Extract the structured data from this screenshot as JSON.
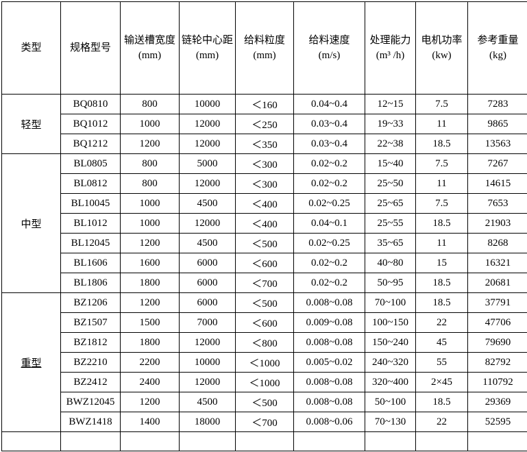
{
  "colors": {
    "background": "#ffffff",
    "border": "#000000",
    "text": "#000000"
  },
  "table": {
    "column_keys": [
      "model",
      "trough-width",
      "sprocket-center-distance",
      "feed-size",
      "feed-speed",
      "capacity",
      "motor-power",
      "reference-weight"
    ],
    "headers": [
      {
        "key": "type",
        "label": "类型",
        "unit": ""
      },
      {
        "key": "model",
        "label": "规格型号",
        "unit": ""
      },
      {
        "key": "trough-width",
        "label": "输送槽宽度",
        "unit": "(mm)"
      },
      {
        "key": "sprocket-center-distance",
        "label": "链轮中心距",
        "unit": "(mm)"
      },
      {
        "key": "feed-size",
        "label": "给料粒度",
        "unit": "(mm)"
      },
      {
        "key": "feed-speed",
        "label": "给料速度",
        "unit": "(m/s)"
      },
      {
        "key": "capacity",
        "label": "处理能力",
        "unit": "(m³ /h)"
      },
      {
        "key": "motor-power",
        "label": "电机功率",
        "unit": "(kw)"
      },
      {
        "key": "reference-weight",
        "label": "参考重量",
        "unit": "(kg)"
      }
    ],
    "groups": [
      {
        "type": "轻型",
        "underline": false,
        "rows": [
          [
            "BQ0810",
            "800",
            "10000",
            "＜160",
            "0.04~0.4",
            "12~15",
            "7.5",
            "7283"
          ],
          [
            "BQ1012",
            "1000",
            "12000",
            "＜250",
            "0.03~0.4",
            "19~33",
            "11",
            "9865"
          ],
          [
            "BQ1212",
            "1200",
            "12000",
            "＜350",
            "0.03~0.4",
            "22~38",
            "18.5",
            "13563"
          ]
        ]
      },
      {
        "type": "中型",
        "underline": false,
        "rows": [
          [
            "BL0805",
            "800",
            "5000",
            "＜300",
            "0.02~0.2",
            "15~40",
            "7.5",
            "7267"
          ],
          [
            "BL0812",
            "800",
            "12000",
            "＜300",
            "0.02~0.2",
            "25~50",
            "11",
            "14615"
          ],
          [
            "BL10045",
            "1000",
            "4500",
            "＜400",
            "0.02~0.25",
            "25~65",
            "7.5",
            "7653"
          ],
          [
            "BL1012",
            "1000",
            "12000",
            "＜400",
            "0.04~0.1",
            "25~55",
            "18.5",
            "21903"
          ],
          [
            "BL12045",
            "1200",
            "4500",
            "＜500",
            "0.02~0.25",
            "35~65",
            "11",
            "8268"
          ],
          [
            "BL1606",
            "1600",
            "6000",
            "＜600",
            "0.02~0.2",
            "40~80",
            "15",
            "16321"
          ],
          [
            "BL1806",
            "1800",
            "6000",
            "＜700",
            "0.02~0.2",
            "50~95",
            "18.5",
            "20681"
          ]
        ]
      },
      {
        "type": "重型",
        "underline": true,
        "rows": [
          [
            "BZ1206",
            "1200",
            "6000",
            "＜500",
            "0.008~0.08",
            "70~100",
            "18.5",
            "37791"
          ],
          [
            "BZ1507",
            "1500",
            "7000",
            "＜600",
            "0.009~0.08",
            "100~150",
            "22",
            "47706"
          ],
          [
            "BZ1812",
            "1800",
            "12000",
            "＜800",
            "0.008~0.08",
            "150~240",
            "45",
            "79690"
          ],
          [
            "BZ2210",
            "2200",
            "10000",
            "＜1000",
            "0.005~0.02",
            "240~320",
            "55",
            "82792"
          ],
          [
            "BZ2412",
            "2400",
            "12000",
            "＜1000",
            "0.008~0.08",
            "320~400",
            "2×45",
            "110792"
          ],
          [
            "BWZ12045",
            "1200",
            "4500",
            "＜500",
            "0.008~0.08",
            "50~100",
            "18.5",
            "29369"
          ],
          [
            "BWZ1418",
            "1400",
            "18000",
            "＜700",
            "0.008~0.06",
            "70~130",
            "22",
            "52595"
          ]
        ]
      },
      {
        "type": "",
        "underline": false,
        "rows": [
          [
            "",
            "",
            "",
            "",
            "",
            "",
            "",
            ""
          ]
        ]
      }
    ]
  }
}
